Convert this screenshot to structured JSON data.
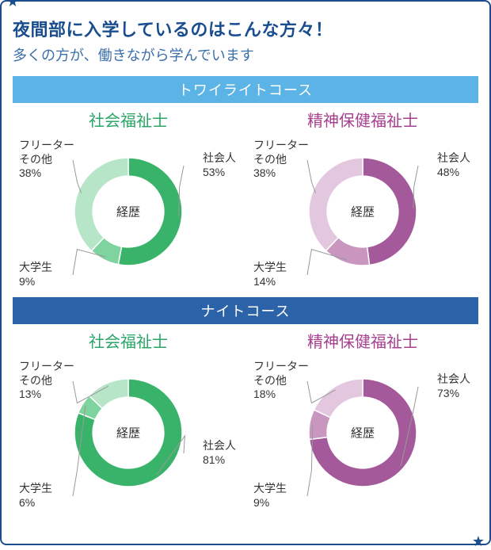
{
  "header": {
    "title": "夜間部に入学しているのはこんな方々！",
    "subtitle": "多くの方が、働きながら学んでいます"
  },
  "sections": [
    {
      "bar_label": "トワイライトコース",
      "bar_color": "#5bb4e5",
      "charts": [
        {
          "title": "社会福祉士",
          "title_color": "#2aa567",
          "center_label": "経歴",
          "type": "donut",
          "ring_width_ratio": 0.34,
          "slices": [
            {
              "label_lines": [
                "社会人",
                "53%"
              ],
              "value": 53,
              "color": "#39b36a",
              "label_pos": "right-top"
            },
            {
              "label_lines": [
                "大学生",
                "9%"
              ],
              "value": 9,
              "color": "#7fd39e",
              "label_pos": "left-bottom"
            },
            {
              "label_lines": [
                "フリーター",
                "その他",
                "38%"
              ],
              "value": 38,
              "color": "#b7e5c8",
              "label_pos": "left-top"
            }
          ]
        },
        {
          "title": "精神保健福祉士",
          "title_color": "#a63f8e",
          "center_label": "経歴",
          "type": "donut",
          "ring_width_ratio": 0.34,
          "slices": [
            {
              "label_lines": [
                "社会人",
                "48%"
              ],
              "value": 48,
              "color": "#a3599a",
              "label_pos": "right-top"
            },
            {
              "label_lines": [
                "大学生",
                "14%"
              ],
              "value": 14,
              "color": "#c996c0",
              "label_pos": "left-bottom"
            },
            {
              "label_lines": [
                "フリーター",
                "その他",
                "38%"
              ],
              "value": 38,
              "color": "#e3c7df",
              "label_pos": "left-top"
            }
          ]
        }
      ]
    },
    {
      "bar_label": "ナイトコース",
      "bar_color": "#2b62a8",
      "charts": [
        {
          "title": "社会福祉士",
          "title_color": "#2aa567",
          "center_label": "経歴",
          "type": "donut",
          "ring_width_ratio": 0.34,
          "slices": [
            {
              "label_lines": [
                "社会人",
                "81%"
              ],
              "value": 81,
              "color": "#39b36a",
              "label_pos": "right-mid"
            },
            {
              "label_lines": [
                "大学生",
                "6%"
              ],
              "value": 6,
              "color": "#7fd39e",
              "label_pos": "left-bottom"
            },
            {
              "label_lines": [
                "フリーター",
                "その他",
                "13%"
              ],
              "value": 13,
              "color": "#b7e5c8",
              "label_pos": "left-top"
            }
          ]
        },
        {
          "title": "精神保健福祉士",
          "title_color": "#a63f8e",
          "center_label": "経歴",
          "type": "donut",
          "ring_width_ratio": 0.34,
          "slices": [
            {
              "label_lines": [
                "社会人",
                "73%"
              ],
              "value": 73,
              "color": "#a3599a",
              "label_pos": "right-top"
            },
            {
              "label_lines": [
                "大学生",
                "9%"
              ],
              "value": 9,
              "color": "#c996c0",
              "label_pos": "left-bottom"
            },
            {
              "label_lines": [
                "フリーター",
                "その他",
                "18%"
              ],
              "value": 18,
              "color": "#e3c7df",
              "label_pos": "left-top"
            }
          ]
        }
      ]
    }
  ],
  "style": {
    "background_color": "#ffffff",
    "border_color": "#1a4d8f",
    "label_font_size": 14,
    "title_font_size": 20,
    "center_font_size": 15,
    "donut_outer_radius": 68,
    "leader_color": "#999999"
  }
}
